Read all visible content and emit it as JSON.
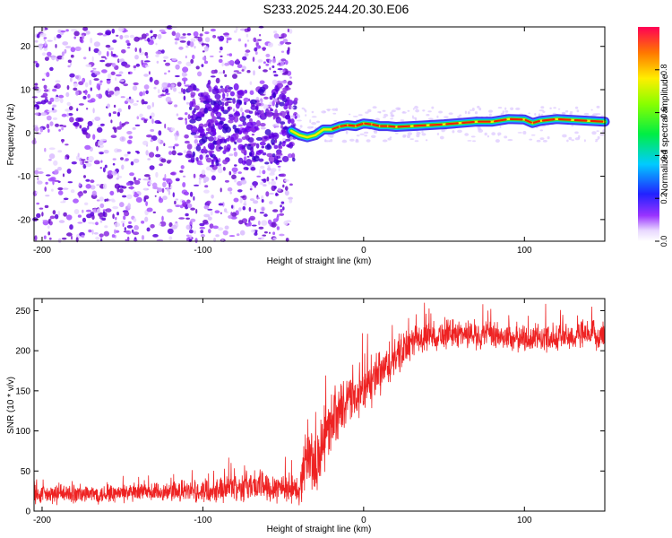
{
  "title": "S233.2025.244.20.30.E06",
  "chart_data": [
    {
      "type": "heatmap",
      "xlabel": "Height of straight line (km)",
      "ylabel": "Frequency (Hz)",
      "xlim": [
        -205,
        150
      ],
      "ylim": [
        -25,
        24.5
      ],
      "xticks": [
        -200,
        -100,
        0,
        100
      ],
      "yticks": [
        -20,
        -10,
        0,
        10,
        20
      ],
      "colorbar": {
        "label": "Normalized spectral amplitude",
        "range": [
          0,
          1
        ],
        "ticks": [
          0.0,
          0.2,
          0.4,
          0.6,
          0.8
        ]
      },
      "scatter_region": {
        "x_range": [
          -205,
          -45
        ],
        "freq_range": [
          -25,
          24.5
        ],
        "description_density": "dense at x < -45"
      },
      "ridge": {
        "x": [
          -45,
          -40,
          -35,
          -30,
          -25,
          -20,
          -15,
          -10,
          -5,
          0,
          5,
          10,
          15,
          20,
          30,
          40,
          50,
          60,
          70,
          80,
          90,
          100,
          105,
          110,
          120,
          130,
          140,
          150
        ],
        "freq": [
          0.5,
          -0.5,
          -1,
          -0.5,
          0.8,
          0.8,
          1.5,
          1.8,
          1.6,
          2.2,
          2,
          1.6,
          1.6,
          1.4,
          1.6,
          1.8,
          2,
          2.3,
          2.6,
          2.6,
          3.2,
          3.1,
          2.3,
          2.8,
          3.2,
          3.0,
          2.8,
          2.6
        ],
        "peak_amplitude": 0.95
      }
    },
    {
      "type": "line",
      "xlabel": "Height of straight line (km)",
      "ylabel": "SNR (10 * v/v)",
      "xlim": [
        -205,
        150
      ],
      "ylim": [
        0,
        265
      ],
      "xticks": [
        -200,
        -100,
        0,
        100
      ],
      "yticks": [
        0,
        50,
        100,
        150,
        200,
        250
      ],
      "color": "#ee2222",
      "envelope": {
        "x": [
          -205,
          -150,
          -100,
          -90,
          -70,
          -50,
          -40,
          -35,
          -30,
          -25,
          -20,
          -10,
          0,
          10,
          20,
          30,
          40,
          60,
          100,
          150
        ],
        "mean": [
          20,
          22,
          25,
          28,
          32,
          30,
          25,
          75,
          55,
          85,
          115,
          135,
          150,
          170,
          190,
          210,
          218,
          222,
          215,
          220
        ],
        "spread": [
          12,
          12,
          14,
          16,
          20,
          20,
          18,
          45,
          45,
          40,
          35,
          30,
          30,
          30,
          25,
          20,
          18,
          18,
          18,
          18
        ]
      }
    }
  ]
}
